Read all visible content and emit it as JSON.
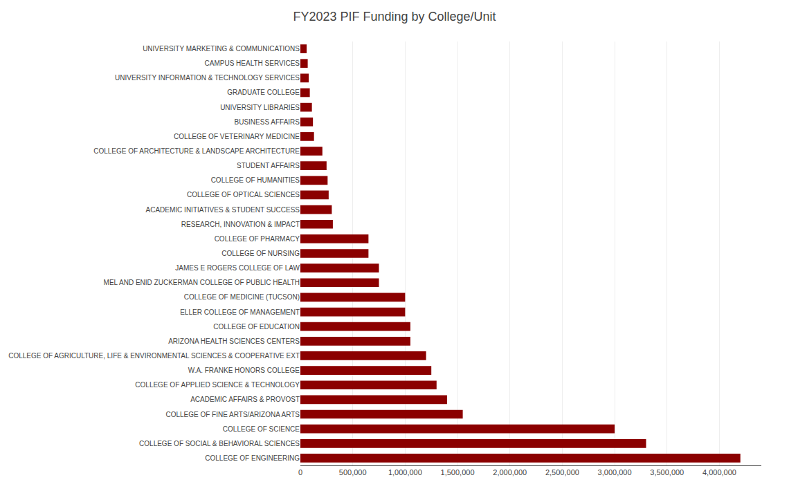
{
  "chart_data": {
    "type": "bar",
    "orientation": "horizontal",
    "title": "FY2023 PIF Funding by College/Unit",
    "categories": [
      "COLLEGE OF ENGINEERING",
      "COLLEGE OF SOCIAL & BEHAVIORAL SCIENCES",
      "COLLEGE OF SCIENCE",
      "COLLEGE OF FINE ARTS/ARIZONA ARTS",
      "ACADEMIC AFFAIRS & PROVOST",
      "COLLEGE OF APPLIED SCIENCE & TECHNOLOGY",
      "W.A. FRANKE HONORS COLLEGE",
      "COLLEGE OF AGRICULTURE, LIFE & ENVIRONMENTAL SCIENCES & COOPERATIVE EXT",
      "ARIZONA HEALTH SCIENCES CENTERS",
      "COLLEGE OF EDUCATION",
      "ELLER COLLEGE OF MANAGEMENT",
      "COLLEGE OF MEDICINE (TUCSON)",
      "MEL AND ENID ZUCKERMAN COLLEGE OF PUBLIC HEALTH",
      "JAMES E ROGERS COLLEGE OF LAW",
      "COLLEGE OF NURSING",
      "COLLEGE OF PHARMACY",
      "RESEARCH, INNOVATION & IMPACT",
      "ACADEMIC INITIATIVES & STUDENT SUCCESS",
      "COLLEGE OF OPTICAL SCIENCES",
      "COLLEGE OF HUMANITIES",
      "STUDENT AFFAIRS",
      "COLLEGE OF ARCHITECTURE & LANDSCAPE ARCHITECTURE",
      "COLLEGE OF VETERINARY MEDICINE",
      "BUSINESS AFFAIRS",
      "UNIVERSITY LIBRARIES",
      "GRADUATE COLLEGE",
      "UNIVERSITY INFORMATION & TECHNOLOGY SERVICES",
      "CAMPUS HEALTH SERVICES",
      "UNIVERSITY MARKETING & COMMUNICATIONS"
    ],
    "values": [
      4200000,
      3300000,
      3000000,
      1550000,
      1400000,
      1300000,
      1250000,
      1200000,
      1050000,
      1050000,
      1000000,
      1000000,
      750000,
      750000,
      650000,
      650000,
      310000,
      300000,
      270000,
      260000,
      250000,
      210000,
      130000,
      120000,
      110000,
      90000,
      80000,
      70000,
      60000
    ],
    "color": "#8B0000",
    "xlim": [
      0,
      4400000
    ],
    "xticks": [
      0,
      {
        "value": 500000,
        "label": "500,000"
      },
      {
        "value": 1000000,
        "label": "1,000,000"
      },
      {
        "value": 1500000,
        "label": "1,500,000"
      },
      {
        "value": 2000000,
        "label": "2,000,000"
      },
      {
        "value": 2500000,
        "label": "2,500,000"
      },
      {
        "value": 3000000,
        "label": "3,000,000"
      },
      {
        "value": 3500000,
        "label": "3,500,000"
      },
      {
        "value": 4000000,
        "label": "4,000,000"
      }
    ],
    "grid": true
  }
}
